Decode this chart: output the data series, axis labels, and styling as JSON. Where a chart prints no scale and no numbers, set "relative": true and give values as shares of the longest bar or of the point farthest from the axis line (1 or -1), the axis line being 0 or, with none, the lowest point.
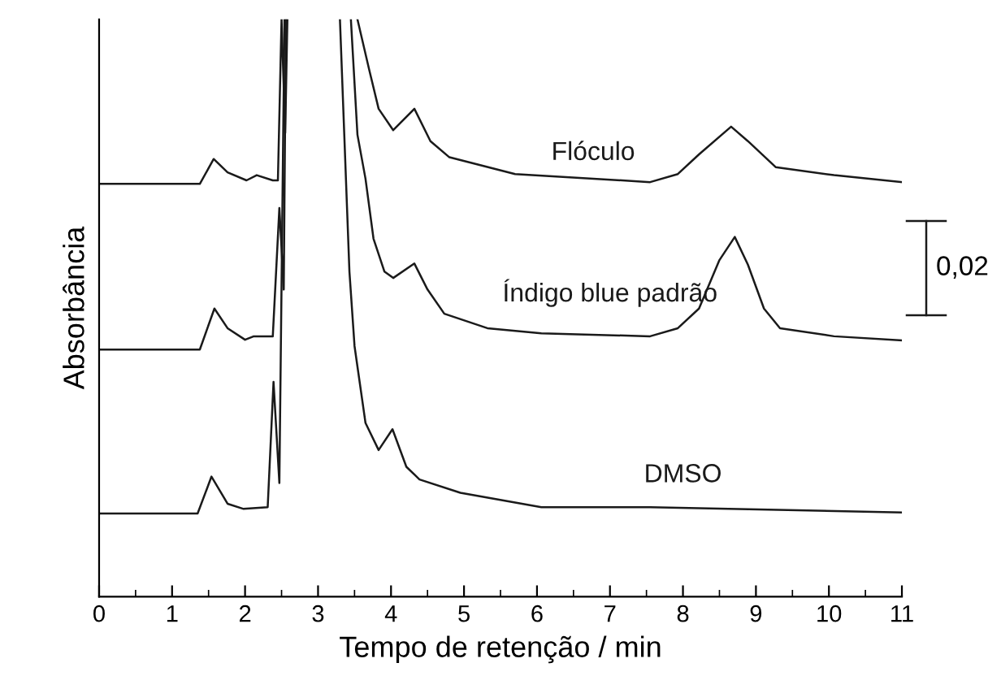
{
  "chart_data": {
    "type": "line",
    "relative": true,
    "xlabel": "Tempo de retenção / min",
    "ylabel": "Absorbância",
    "xlim": [
      0,
      11
    ],
    "xticks": [
      0,
      1,
      2,
      3,
      4,
      5,
      6,
      7,
      8,
      9,
      10,
      11
    ],
    "grid": false,
    "legend": false,
    "marker": "none",
    "line_style": "solid",
    "annotations": [
      "0,02"
    ],
    "series": [
      {
        "name": "Flóculo",
        "color": "#1a1a1a",
        "x": [
          0,
          1.38,
          1.57,
          1.76,
          2.02,
          2.16,
          2.38,
          2.45,
          2.5,
          2.55,
          2.58,
          2.6,
          3.54,
          3.7,
          3.83,
          4.03,
          4.32,
          4.54,
          4.8,
          5.7,
          7.55,
          7.93,
          8.22,
          8.66,
          8.89,
          9.27,
          10.07,
          11
        ],
        "values": [
          0.715,
          0.715,
          0.758,
          0.735,
          0.721,
          0.73,
          0.721,
          0.721,
          1,
          0.803,
          1,
          null,
          1,
          0.913,
          0.845,
          0.808,
          0.845,
          0.789,
          0.761,
          0.732,
          0.718,
          0.732,
          0.766,
          0.814,
          0.789,
          0.744,
          0.73,
          0.718
        ]
      },
      {
        "name": "Índigo blue padrão",
        "color": "#1a1a1a",
        "x": [
          0,
          1.38,
          1.58,
          1.76,
          2.0,
          2.12,
          2.38,
          2.47,
          2.53,
          2.56,
          2.6,
          3.45,
          3.54,
          3.65,
          3.76,
          3.91,
          4.03,
          4.32,
          4.5,
          4.73,
          5.32,
          6.06,
          7.55,
          7.93,
          8.22,
          8.5,
          8.71,
          8.89,
          9.11,
          9.33,
          10.07,
          11
        ],
        "values": [
          0.428,
          0.428,
          0.499,
          0.465,
          0.445,
          0.451,
          0.451,
          0.673,
          0.532,
          1,
          null,
          1,
          0.8,
          0.724,
          0.62,
          0.563,
          0.552,
          0.577,
          0.532,
          0.49,
          0.465,
          0.456,
          0.451,
          0.465,
          0.499,
          0.583,
          0.623,
          0.575,
          0.499,
          0.465,
          0.451,
          0.444
        ]
      },
      {
        "name": "DMSO",
        "color": "#1a1a1a",
        "x": [
          0,
          1.35,
          1.54,
          1.76,
          1.98,
          2.31,
          2.39,
          2.47,
          2.54,
          2.6,
          3.3,
          3.43,
          3.5,
          3.65,
          3.83,
          4.02,
          4.21,
          4.39,
          4.95,
          6.06,
          7.55,
          11
        ],
        "values": [
          0.144,
          0.144,
          0.208,
          0.161,
          0.152,
          0.155,
          0.372,
          0.197,
          1,
          null,
          1,
          0.563,
          0.434,
          0.301,
          0.254,
          0.29,
          0.225,
          0.203,
          0.18,
          0.155,
          0.155,
          0.146
        ]
      }
    ]
  }
}
